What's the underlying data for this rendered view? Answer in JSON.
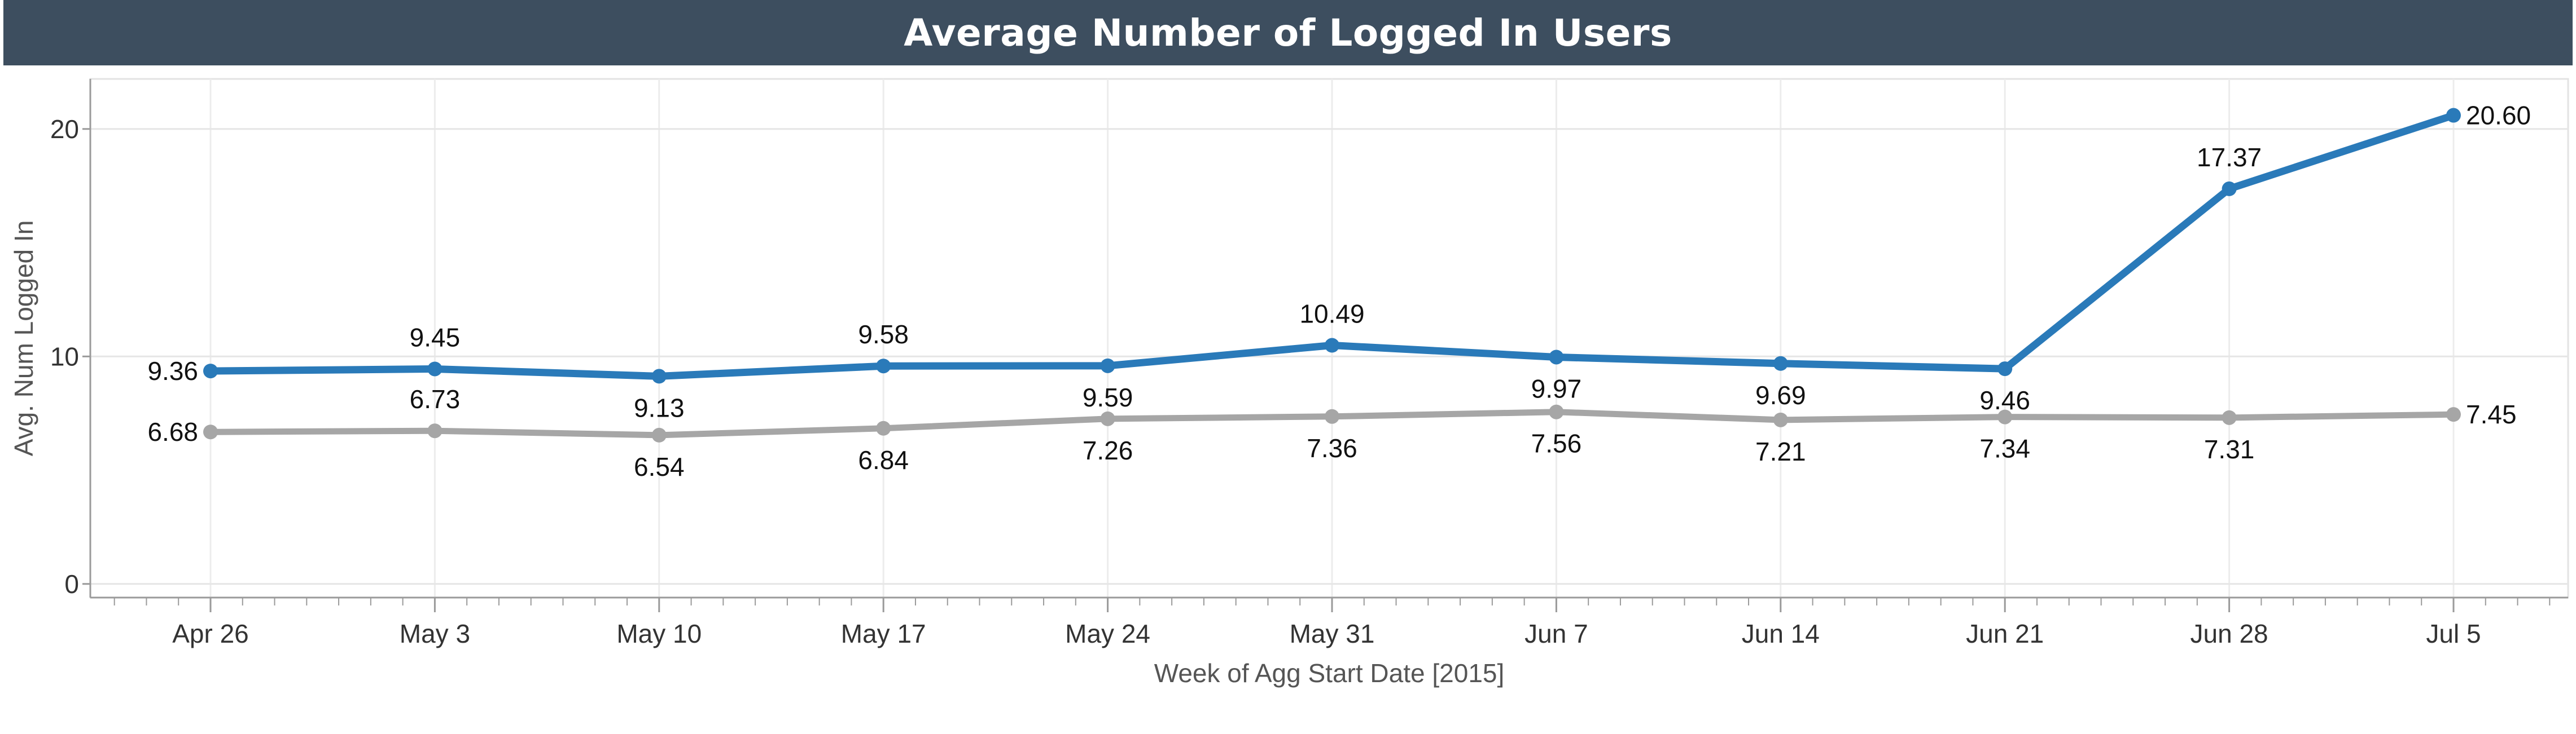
{
  "title": "Average Number of Logged In Users",
  "chart_data": {
    "type": "line",
    "title": "Average Number of Logged In Users",
    "xlabel": "Week of Agg Start Date [2015]",
    "ylabel": "Avg. Num Logged In",
    "categories": [
      "Apr 26",
      "May 3",
      "May 10",
      "May 17",
      "May 24",
      "May 31",
      "Jun 7",
      "Jun 14",
      "Jun 21",
      "Jun 28",
      "Jul 5"
    ],
    "series": [
      {
        "color": "#2a7ab9",
        "values": [
          9.36,
          9.45,
          9.13,
          9.58,
          9.59,
          10.49,
          9.97,
          9.69,
          9.46,
          17.37,
          20.6
        ],
        "labels": [
          "9.36",
          "9.45",
          "9.13",
          "9.58",
          "9.59",
          "10.49",
          "9.97",
          "9.69",
          "9.46",
          "17.37",
          "20.60"
        ]
      },
      {
        "color": "#a6a6a6",
        "values": [
          6.68,
          6.73,
          6.54,
          6.84,
          7.26,
          7.36,
          7.56,
          7.21,
          7.34,
          7.31,
          7.45
        ],
        "labels": [
          "6.68",
          "6.73",
          "6.54",
          "6.84",
          "7.26",
          "7.36",
          "7.56",
          "7.21",
          "7.34",
          "7.31",
          "7.45"
        ]
      }
    ],
    "yticks": [
      0,
      10,
      20
    ],
    "ytick_labels": [
      "0",
      "10",
      "20"
    ],
    "ylim": [
      -0.6,
      22.2
    ],
    "grid": true,
    "legend": "none"
  }
}
